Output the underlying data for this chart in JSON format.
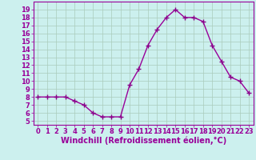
{
  "x": [
    0,
    1,
    2,
    3,
    4,
    5,
    6,
    7,
    8,
    9,
    10,
    11,
    12,
    13,
    14,
    15,
    16,
    17,
    18,
    19,
    20,
    21,
    22,
    23
  ],
  "y": [
    8,
    8,
    8,
    8,
    7.5,
    7,
    6,
    5.5,
    5.5,
    5.5,
    9.5,
    11.5,
    14.5,
    16.5,
    18,
    19,
    18,
    18,
    17.5,
    14.5,
    12.5,
    10.5,
    10,
    8.5
  ],
  "line_color": "#990099",
  "marker": "+",
  "marker_size": 4,
  "background_color": "#ccf0ee",
  "grid_color": "#aaccbb",
  "xlabel": "Windchill (Refroidissement éolien,°C)",
  "xlabel_fontsize": 7,
  "ylabel_ticks": [
    5,
    6,
    7,
    8,
    9,
    10,
    11,
    12,
    13,
    14,
    15,
    16,
    17,
    18,
    19
  ],
  "ylim": [
    4.5,
    20.0
  ],
  "xlim": [
    -0.5,
    23.5
  ],
  "xtick_labels": [
    "0",
    "1",
    "2",
    "3",
    "4",
    "5",
    "6",
    "7",
    "8",
    "9",
    "10",
    "11",
    "12",
    "13",
    "14",
    "15",
    "16",
    "17",
    "18",
    "19",
    "20",
    "21",
    "22",
    "23"
  ],
  "tick_fontsize": 6,
  "line_width": 1.0,
  "marker_color": "#880088"
}
